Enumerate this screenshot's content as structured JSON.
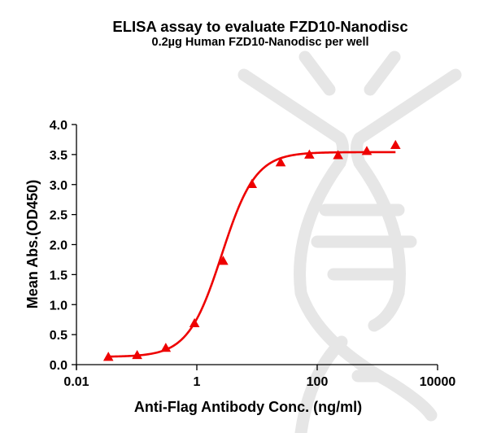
{
  "chart_data": {
    "type": "scatter",
    "title": "ELISA assay to evaluate FZD10-Nanodisc",
    "subtitle": "0.2µg Human FZD10-Nanodisc per well",
    "xlabel": "Anti-Flag Antibody Conc. (ng/ml)",
    "ylabel": "Mean Abs.(OD450)",
    "xscale": "log",
    "xlim": [
      0.01,
      10000
    ],
    "ylim": [
      0.0,
      4.0
    ],
    "x_ticks": [
      "0.01",
      "1",
      "100",
      "10000"
    ],
    "y_ticks": [
      "0.0",
      "0.5",
      "1.0",
      "1.5",
      "2.0",
      "2.5",
      "3.0",
      "3.5",
      "4.0"
    ],
    "grid": false,
    "legend": null,
    "series": [
      {
        "name": "FZD10-Nanodisc",
        "marker": "triangle",
        "color": "#ee0000",
        "fit": "4PL sigmoidal curve",
        "x": [
          0.0339,
          0.102,
          0.305,
          0.914,
          2.74,
          8.23,
          24.7,
          74.1,
          222,
          667,
          2000
        ],
        "y": [
          0.12,
          0.15,
          0.27,
          0.68,
          1.72,
          3.0,
          3.36,
          3.49,
          3.48,
          3.55,
          3.65
        ]
      }
    ]
  }
}
